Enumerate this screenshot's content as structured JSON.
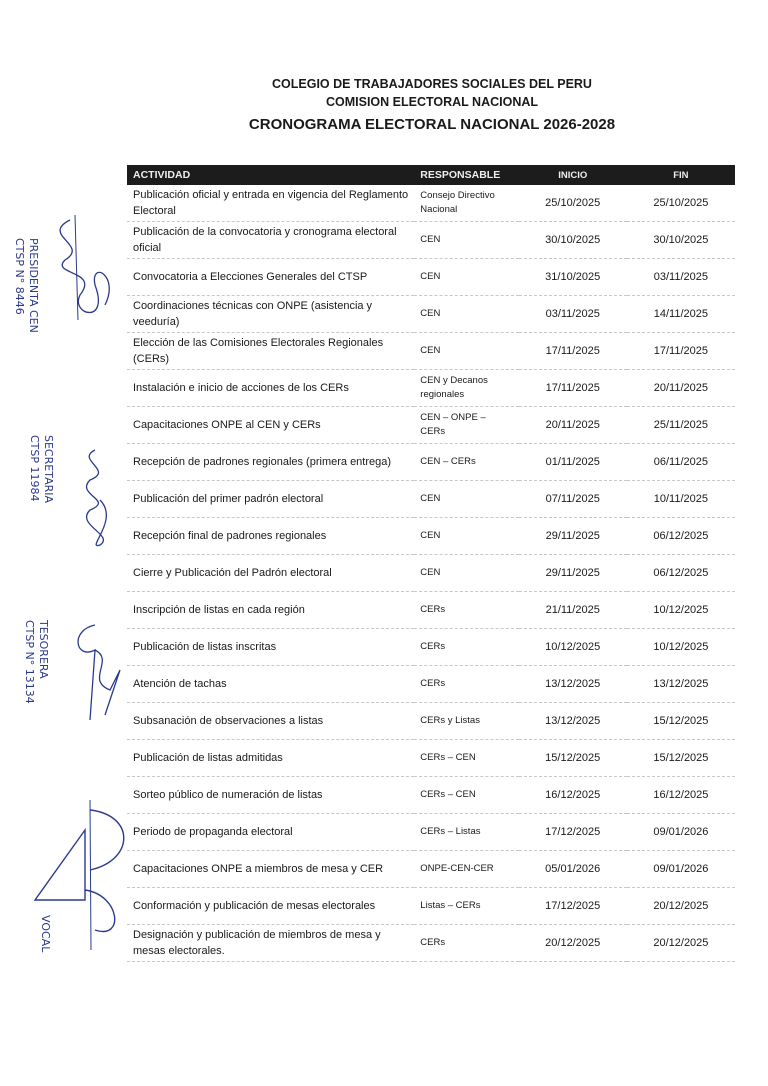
{
  "header": {
    "line1": "COLEGIO DE TRABAJADORES SOCIALES DEL PERU",
    "line2": "COMISION ELECTORAL NACIONAL",
    "title": "CRONOGRAMA ELECTORAL NACIONAL 2026-2028"
  },
  "table": {
    "columns": [
      "ACTIVIDAD",
      "RESPONSABLE",
      "INICIO",
      "FIN"
    ],
    "rows": [
      {
        "actividad": "Publicación oficial y entrada en vigencia del Reglamento Electoral",
        "responsable": "Consejo Directivo Nacional",
        "inicio": "25/10/2025",
        "fin": "25/10/2025"
      },
      {
        "actividad": "Publicación de la convocatoria y cronograma electoral oficial",
        "responsable": "CEN",
        "inicio": "30/10/2025",
        "fin": "30/10/2025"
      },
      {
        "actividad": "Convocatoria a Elecciones Generales del CTSP",
        "responsable": "CEN",
        "inicio": "31/10/2025",
        "fin": "03/11/2025"
      },
      {
        "actividad": "Coordinaciones técnicas con ONPE (asistencia y veeduría)",
        "responsable": "CEN",
        "inicio": "03/11/2025",
        "fin": "14/11/2025"
      },
      {
        "actividad": "Elección de las Comisiones Electorales Regionales (CERs)",
        "responsable": "CEN",
        "inicio": "17/11/2025",
        "fin": "17/11/2025"
      },
      {
        "actividad": "Instalación e inicio de acciones de los CERs",
        "responsable": "CEN y Decanos regionales",
        "inicio": "17/11/2025",
        "fin": "20/11/2025"
      },
      {
        "actividad": "Capacitaciones ONPE al CEN y CERs",
        "responsable": "CEN – ONPE – CERs",
        "inicio": "20/11/2025",
        "fin": "25/11/2025"
      },
      {
        "actividad": "Recepción de padrones regionales (primera entrega)",
        "responsable": "CEN – CERs",
        "inicio": "01/11/2025",
        "fin": "06/11/2025"
      },
      {
        "actividad": "Publicación del primer padrón electoral",
        "responsable": "CEN",
        "inicio": "07/11/2025",
        "fin": "10/11/2025"
      },
      {
        "actividad": "Recepción final de padrones regionales",
        "responsable": "CEN",
        "inicio": "29/11/2025",
        "fin": "06/12/2025"
      },
      {
        "actividad": "Cierre y Publicación del Padrón electoral",
        "responsable": "CEN",
        "inicio": "29/11/2025",
        "fin": "06/12/2025"
      },
      {
        "actividad": "Inscripción de listas en cada región",
        "responsable": "CERs",
        "inicio": "21/11/2025",
        "fin": "10/12/2025"
      },
      {
        "actividad": "Publicación de listas inscritas",
        "responsable": "CERs",
        "inicio": "10/12/2025",
        "fin": "10/12/2025"
      },
      {
        "actividad": "Atención de tachas",
        "responsable": "CERs",
        "inicio": "13/12/2025",
        "fin": "13/12/2025"
      },
      {
        "actividad": "Subsanación de observaciones a listas",
        "responsable": "CERs y Listas",
        "inicio": "13/12/2025",
        "fin": "15/12/2025"
      },
      {
        "actividad": "Publicación de listas admitidas",
        "responsable": "CERs – CEN",
        "inicio": "15/12/2025",
        "fin": "15/12/2025"
      },
      {
        "actividad": "Sorteo público de numeración de listas",
        "responsable": "CERs – CEN",
        "inicio": "16/12/2025",
        "fin": "16/12/2025"
      },
      {
        "actividad": "Periodo de propaganda electoral",
        "responsable": "CERs – Listas",
        "inicio": "17/12/2025",
        "fin": "09/01/2026"
      },
      {
        "actividad": "Capacitaciones ONPE a miembros de mesa y CER",
        "responsable": "ONPE-CEN-CER",
        "inicio": "05/01/2026",
        "fin": "09/01/2026"
      },
      {
        "actividad": "Conformación y publicación de mesas electorales",
        "responsable": "Listas – CERs",
        "inicio": "17/12/2025",
        "fin": "20/12/2025"
      },
      {
        "actividad": "Designación y publicación de miembros de mesa y mesas electorales.",
        "responsable": "CERs",
        "inicio": "20/12/2025",
        "fin": "20/12/2025"
      }
    ]
  },
  "signatures": [
    {
      "text": "PRESIDENTA CEN\nCTSP N° 8446"
    },
    {
      "text": "SECRETARIA\nCTSP 11984"
    },
    {
      "text": "TESORERA\nCTSP N° 13134"
    },
    {
      "text": "VOCAL"
    }
  ],
  "colors": {
    "header_bg": "#1c1c1c",
    "ink": "#2b3a8c"
  }
}
